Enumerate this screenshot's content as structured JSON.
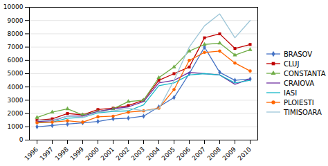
{
  "chart_data": {
    "type": "line",
    "x": [
      1996,
      1997,
      1998,
      1999,
      2000,
      2001,
      2002,
      2003,
      2004,
      2005,
      2006,
      2007,
      2008,
      2009,
      2010
    ],
    "xlim": [
      1995.5,
      2010.5
    ],
    "xticks": [
      1996,
      1997,
      1998,
      1999,
      2000,
      2001,
      2002,
      2003,
      2004,
      2005,
      2006,
      2007,
      2008,
      2009,
      2010
    ],
    "ylim": [
      0,
      10000
    ],
    "yticks": [
      0,
      1000,
      2000,
      3000,
      4000,
      5000,
      6000,
      7000,
      8000,
      9000,
      10000
    ],
    "grid": true,
    "legend": "right",
    "series": [
      {
        "name": "BRASOV",
        "color": "#4472C4",
        "marker": "diamond",
        "values": [
          1000,
          1100,
          1200,
          1300,
          1400,
          1600,
          1650,
          1800,
          2500,
          3200,
          5000,
          7000,
          5100,
          4500,
          4600
        ]
      },
      {
        "name": "CLUJ",
        "color": "#C00000",
        "marker": "square",
        "values": [
          1500,
          1600,
          2000,
          1900,
          2300,
          2400,
          2600,
          3000,
          4500,
          5000,
          5500,
          7700,
          8000,
          6900,
          7200
        ]
      },
      {
        "name": "CONSTANTA",
        "color": "#70AD47",
        "marker": "triangle",
        "values": [
          1700,
          2100,
          2350,
          1900,
          2150,
          2350,
          2900,
          3000,
          4700,
          5500,
          6700,
          7200,
          7300,
          6400,
          6800
        ]
      },
      {
        "name": "CRAIOVA",
        "color": "#7030A0",
        "values": [
          1400,
          1450,
          1800,
          1800,
          2150,
          2350,
          2500,
          2900,
          4300,
          4500,
          5100,
          5000,
          4900,
          4200,
          4600
        ]
      },
      {
        "name": "IASI",
        "color": "#17B8C8",
        "values": [
          1350,
          1350,
          1650,
          1700,
          2050,
          2150,
          2200,
          2650,
          4100,
          4300,
          4900,
          5000,
          4900,
          4300,
          4500
        ]
      },
      {
        "name": "PLOIESTI",
        "color": "#FF6600",
        "marker": "circle",
        "values": [
          1300,
          1350,
          1450,
          1350,
          1750,
          1800,
          2100,
          2200,
          2400,
          3800,
          6000,
          6600,
          6700,
          5800,
          5200
        ]
      },
      {
        "name": "TIMISOARA",
        "color": "#9DC6D8",
        "values": [
          1500,
          1500,
          1800,
          1700,
          2100,
          2200,
          2400,
          2200,
          2350,
          4500,
          7000,
          8600,
          9500,
          7700,
          9000
        ]
      }
    ]
  }
}
